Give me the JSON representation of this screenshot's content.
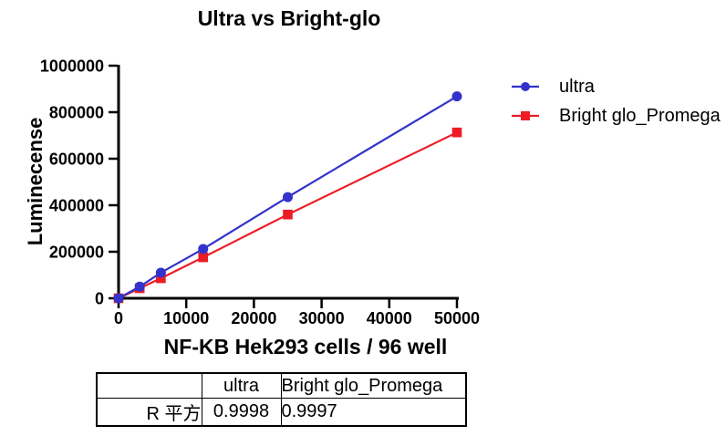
{
  "chart_data": {
    "type": "line",
    "title": "Ultra vs Bright-glo",
    "xlabel": "NF-KB Hek293 cells / 96 well",
    "ylabel": "Luminecense",
    "x": [
      0,
      3125,
      6250,
      12500,
      25000,
      50000
    ],
    "series": [
      {
        "name": "ultra",
        "color": "#3333CB",
        "marker": "circle",
        "values": [
          0,
          50000,
          110000,
          212000,
          435000,
          868000
        ]
      },
      {
        "name": "Bright glo_Promega",
        "color": "#ED1C24",
        "marker": "square",
        "values": [
          0,
          43000,
          86000,
          176000,
          360000,
          713000
        ]
      }
    ],
    "xlim": [
      0,
      50000
    ],
    "ylim": [
      0,
      1000000
    ],
    "x_ticks": [
      0,
      10000,
      20000,
      30000,
      40000,
      50000
    ],
    "y_ticks": [
      0,
      200000,
      400000,
      600000,
      800000,
      1000000
    ],
    "grid": false,
    "legend_position": "right",
    "axis_color": "#000000"
  },
  "table": {
    "header": [
      "",
      "ultra",
      "Bright glo_Promega"
    ],
    "rows": [
      [
        "R 平方",
        "0.9998",
        "0.9997"
      ]
    ]
  }
}
